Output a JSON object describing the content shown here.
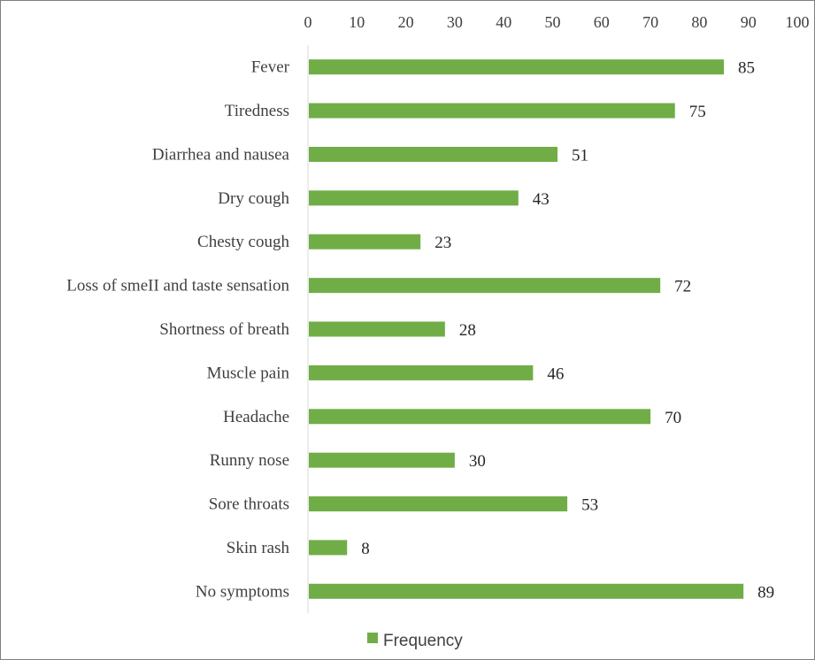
{
  "chart_data": {
    "type": "bar",
    "orientation": "horizontal",
    "categories": [
      "Fever",
      "Tiredness",
      "Diarrhea and nausea",
      "Dry cough",
      "Chesty cough",
      "Loss of smeII and taste sensation",
      "Shortness of breath",
      "Muscle pain",
      "Headache",
      "Runny nose",
      "Sore throats",
      "Skin rash",
      "No symptoms"
    ],
    "series": [
      {
        "name": "Frequency",
        "color": "#70ad47",
        "values": [
          85,
          75,
          51,
          43,
          23,
          72,
          28,
          46,
          70,
          30,
          53,
          8,
          89
        ]
      }
    ],
    "xticks": [
      "0",
      "10",
      "20",
      "30",
      "40",
      "50",
      "60",
      "70",
      "80",
      "90",
      "100"
    ],
    "xlim": [
      0,
      100
    ],
    "xaxis_position": "top",
    "grid": false,
    "data_labels": true,
    "legend": "bottom"
  }
}
